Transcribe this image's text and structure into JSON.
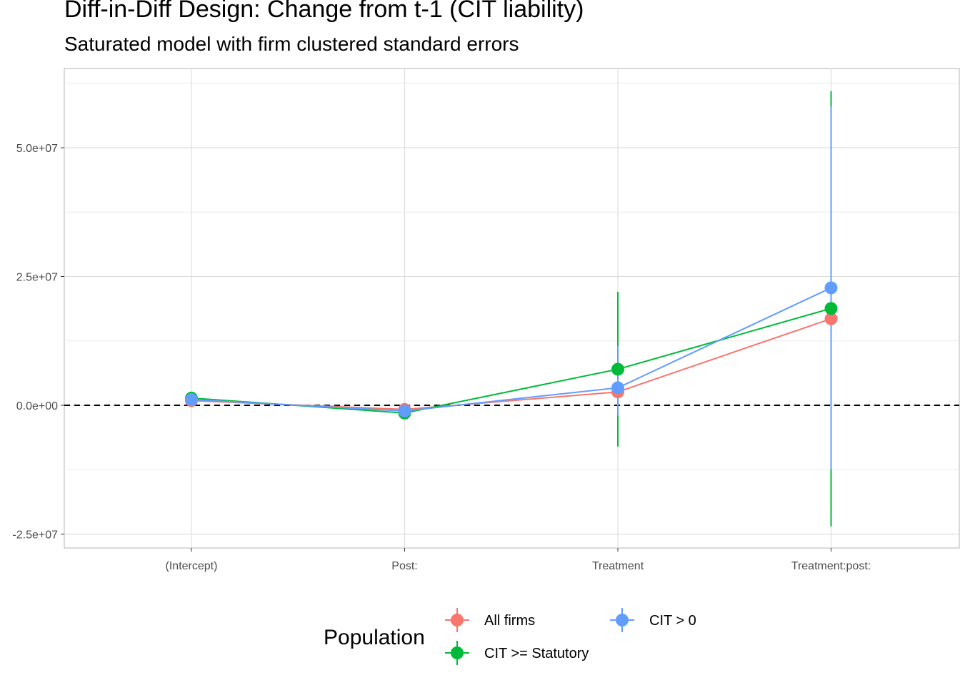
{
  "chart_data": {
    "type": "line",
    "title": "Diff-in-Diff Design: Change from t-1 (CIT liability)",
    "subtitle": "Saturated model with firm clustered standard errors",
    "xlabel": "",
    "ylabel": "",
    "categories": [
      "(Intercept)",
      "Post:",
      "Treatment",
      "Treatment:post:"
    ],
    "ylim": [
      -27500000,
      63000000
    ],
    "yticks": [
      -25000000,
      0,
      25000000,
      50000000
    ],
    "ytick_labels": [
      "-2.5e+07",
      "0.0e+00",
      "2.5e+07",
      "5.0e+07"
    ],
    "reference_line": {
      "y": 0,
      "style": "dashed",
      "color": "#000000"
    },
    "grid": true,
    "legend": {
      "title": "Population",
      "position": "bottom"
    },
    "series": [
      {
        "name": "All firms",
        "color": "#F8766D",
        "values": [
          900000,
          -800000,
          2600000,
          16800000
        ],
        "lower": [
          700000,
          -1000000,
          2400000,
          16600000
        ],
        "upper": [
          1100000,
          -600000,
          2800000,
          17000000
        ]
      },
      {
        "name": "CIT >= Statutory",
        "color": "#00BA38",
        "values": [
          1400000,
          -1500000,
          7000000,
          18800000
        ],
        "lower": [
          1000000,
          -1900000,
          -8000000,
          -23500000
        ],
        "upper": [
          1800000,
          -1100000,
          22000000,
          61000000
        ]
      },
      {
        "name": "CIT > 0",
        "color": "#619CFF",
        "values": [
          1100000,
          -1100000,
          3400000,
          22800000
        ],
        "lower": [
          900000,
          -1300000,
          -2000000,
          -12500000
        ],
        "upper": [
          1300000,
          -900000,
          11500000,
          58000000
        ]
      }
    ]
  }
}
